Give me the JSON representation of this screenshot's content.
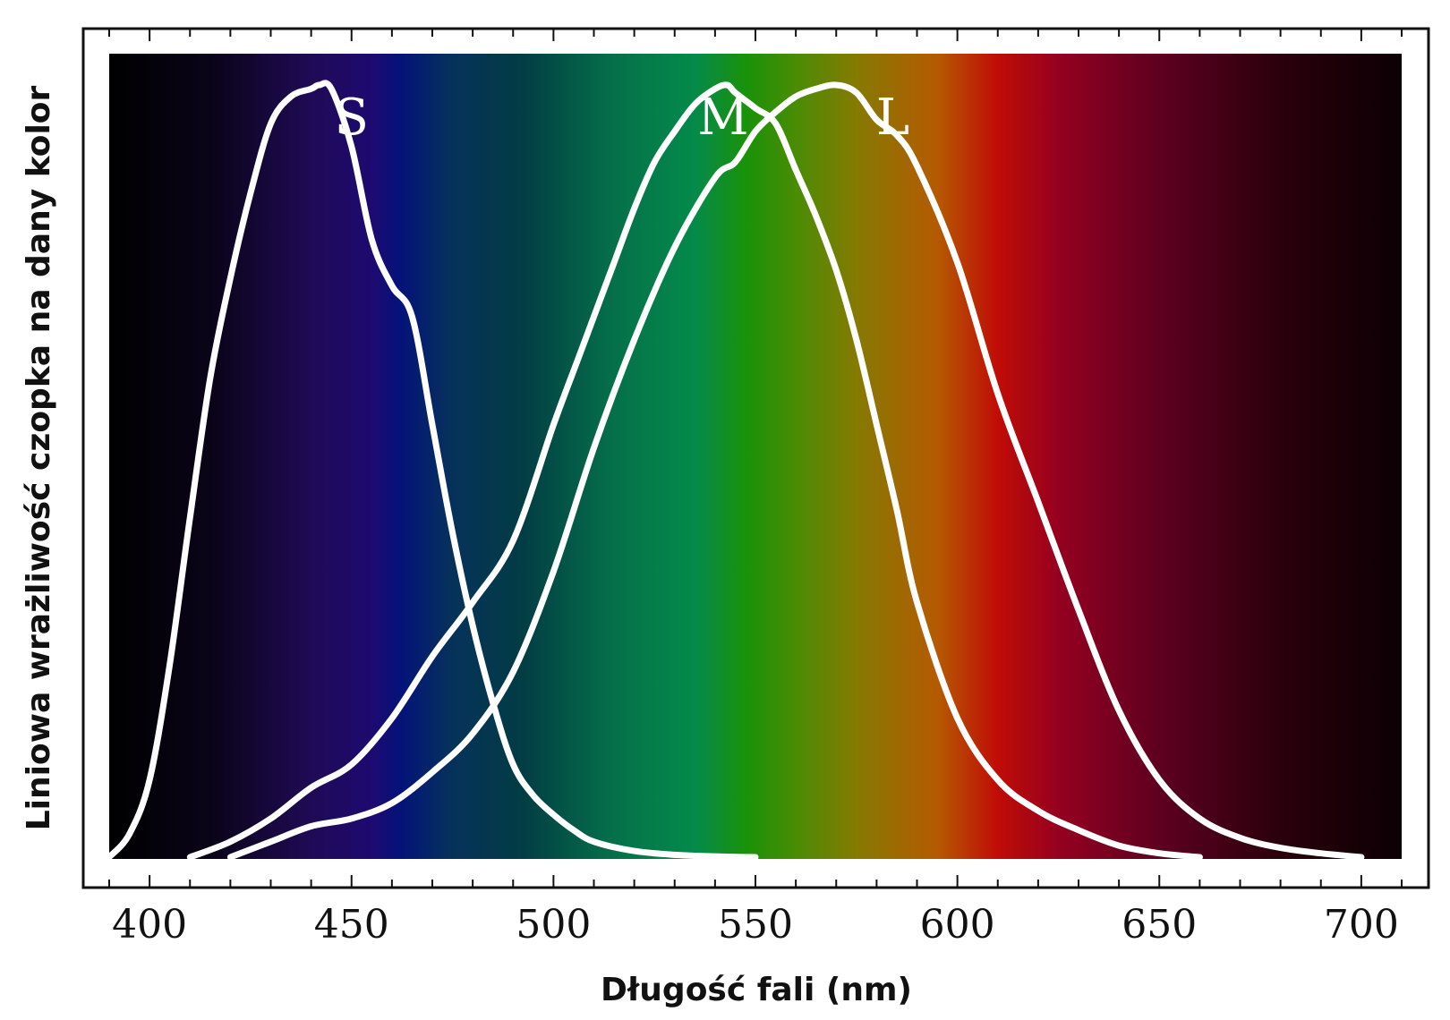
{
  "chart_data": {
    "type": "line",
    "title": "",
    "xlabel": "Długość fali (nm)",
    "ylabel": "Liniowa wrażliwość czopka na dany kolor",
    "xlim": [
      390,
      710
    ],
    "ylim": [
      0,
      1
    ],
    "grid": false,
    "legend": "none",
    "x_ticks": [
      400,
      450,
      500,
      550,
      600,
      650,
      700
    ],
    "x_minor_step": 10,
    "y_ticks_labeled": false,
    "background": "visible spectrum gradient",
    "spectrum_colors": [
      {
        "nm": 390,
        "color": "#000000"
      },
      {
        "nm": 415,
        "color": "#0a0418"
      },
      {
        "nm": 440,
        "color": "#1f0a55"
      },
      {
        "nm": 455,
        "color": "#1e0a70"
      },
      {
        "nm": 462,
        "color": "#04127a"
      },
      {
        "nm": 475,
        "color": "#06325a"
      },
      {
        "nm": 492,
        "color": "#023c44"
      },
      {
        "nm": 515,
        "color": "#05704a"
      },
      {
        "nm": 535,
        "color": "#048a4a"
      },
      {
        "nm": 548,
        "color": "#1a9208"
      },
      {
        "nm": 560,
        "color": "#4a8c04"
      },
      {
        "nm": 575,
        "color": "#857a02"
      },
      {
        "nm": 595,
        "color": "#b55a02"
      },
      {
        "nm": 610,
        "color": "#c00c06"
      },
      {
        "nm": 625,
        "color": "#960020"
      },
      {
        "nm": 650,
        "color": "#5e0020"
      },
      {
        "nm": 680,
        "color": "#2a000c"
      },
      {
        "nm": 710,
        "color": "#0c0004"
      }
    ],
    "series": [
      {
        "name": "S",
        "color": "#ffffff",
        "x": [
          390,
          395,
          400,
          405,
          410,
          415,
          420,
          425,
          430,
          435,
          440,
          442,
          445,
          450,
          455,
          460,
          465,
          470,
          475,
          480,
          485,
          490,
          495,
          500,
          505,
          510,
          520,
          530,
          540,
          550
        ],
        "y": [
          0.0,
          0.03,
          0.1,
          0.25,
          0.44,
          0.62,
          0.75,
          0.86,
          0.95,
          0.985,
          0.995,
          1.0,
          0.995,
          0.92,
          0.8,
          0.74,
          0.7,
          0.56,
          0.42,
          0.3,
          0.2,
          0.12,
          0.08,
          0.055,
          0.035,
          0.02,
          0.008,
          0.003,
          0.001,
          0.0
        ]
      },
      {
        "name": "M",
        "color": "#ffffff",
        "x": [
          410,
          420,
          430,
          440,
          450,
          460,
          470,
          480,
          490,
          500,
          505,
          510,
          515,
          520,
          525,
          530,
          535,
          540,
          543,
          545,
          550,
          555,
          560,
          565,
          570,
          575,
          580,
          585,
          590,
          600,
          610,
          620,
          630,
          640,
          650,
          660
        ],
        "y": [
          0.0,
          0.02,
          0.05,
          0.09,
          0.12,
          0.18,
          0.26,
          0.33,
          0.41,
          0.56,
          0.63,
          0.7,
          0.77,
          0.84,
          0.9,
          0.94,
          0.975,
          0.995,
          1.0,
          0.99,
          0.97,
          0.95,
          0.89,
          0.83,
          0.76,
          0.67,
          0.56,
          0.45,
          0.33,
          0.18,
          0.1,
          0.06,
          0.035,
          0.015,
          0.005,
          0.0
        ]
      },
      {
        "name": "L",
        "color": "#ffffff",
        "x": [
          420,
          430,
          440,
          450,
          460,
          470,
          480,
          490,
          500,
          510,
          520,
          530,
          540,
          545,
          550,
          555,
          560,
          565,
          570,
          575,
          580,
          585,
          590,
          600,
          610,
          620,
          630,
          640,
          650,
          660,
          670,
          680,
          690,
          700
        ],
        "y": [
          0.0,
          0.02,
          0.04,
          0.05,
          0.07,
          0.11,
          0.16,
          0.24,
          0.37,
          0.53,
          0.67,
          0.79,
          0.88,
          0.9,
          0.94,
          0.965,
          0.985,
          0.995,
          1.0,
          0.99,
          0.955,
          0.935,
          0.895,
          0.77,
          0.6,
          0.46,
          0.32,
          0.19,
          0.1,
          0.05,
          0.025,
          0.012,
          0.005,
          0.0
        ]
      }
    ]
  }
}
